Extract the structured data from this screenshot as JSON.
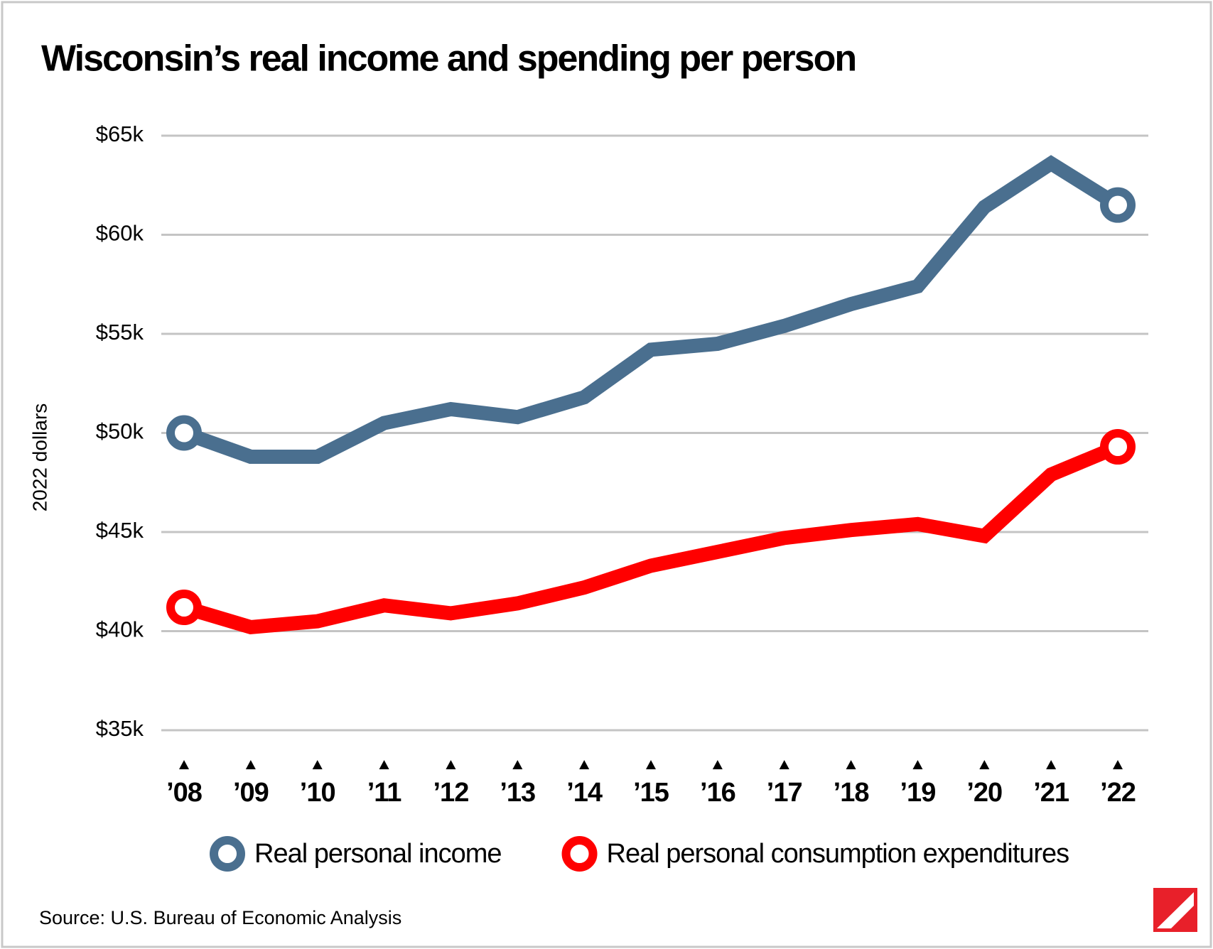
{
  "chart_data": {
    "type": "line",
    "title": "Wisconsin’s real income and spending per person",
    "y_label": "2022 dollars",
    "source": "Source: U.S. Bureau of Economic Analysis",
    "categories": [
      "’08",
      "’09",
      "’10",
      "’11",
      "’12",
      "’13",
      "’14",
      "’15",
      "’16",
      "’17",
      "’18",
      "’19",
      "’20",
      "’21",
      "’22"
    ],
    "series": [
      {
        "name": "Real personal income",
        "color": "#4a6f8f",
        "values": [
          50000,
          48800,
          48800,
          50500,
          51200,
          50800,
          51800,
          54200,
          54500,
          55400,
          56500,
          57400,
          61400,
          63600,
          61500
        ]
      },
      {
        "name": "Real personal consumption expenditures",
        "color": "#ff0000",
        "values": [
          41200,
          40200,
          40500,
          41300,
          40900,
          41400,
          42200,
          43300,
          44000,
          44700,
          45100,
          45400,
          44800,
          47900,
          49300
        ]
      }
    ],
    "ylim": [
      35000,
      65000
    ],
    "yticks": [
      {
        "value": 35000,
        "label": "$35k"
      },
      {
        "value": 40000,
        "label": "$40k"
      },
      {
        "value": 45000,
        "label": "$45k"
      },
      {
        "value": 50000,
        "label": "$50k"
      },
      {
        "value": 55000,
        "label": "$55k"
      },
      {
        "value": 60000,
        "label": "$60k"
      },
      {
        "value": 65000,
        "label": "$65k"
      }
    ],
    "grid": true
  }
}
